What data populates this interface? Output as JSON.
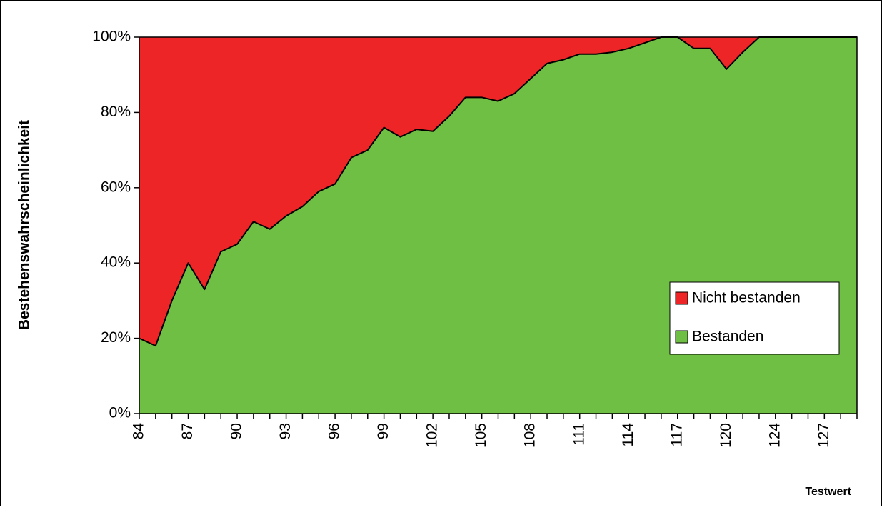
{
  "chart_data": {
    "type": "stacked-area",
    "y_label": "Bestehenswahrscheinlichkeit",
    "x_label": "Testwert",
    "categories": [
      "84",
      null,
      null,
      "87",
      null,
      null,
      "90",
      null,
      null,
      "93",
      null,
      null,
      "96",
      null,
      null,
      "99",
      null,
      null,
      "102",
      null,
      null,
      "105",
      null,
      null,
      "108",
      null,
      null,
      "111",
      null,
      null,
      "114",
      null,
      null,
      "117",
      null,
      null,
      "120",
      null,
      null,
      "124",
      null,
      null,
      "127",
      null,
      null
    ],
    "series": [
      {
        "name": "Bestanden",
        "color": "#6fbf45",
        "values": [
          20,
          18,
          30,
          40,
          33,
          43,
          45,
          51,
          49,
          52.5,
          55,
          59,
          61,
          68,
          70,
          76,
          73.5,
          75.5,
          75,
          79,
          84,
          84,
          83,
          85,
          89,
          93,
          94,
          95.5,
          95.5,
          96,
          97,
          98.5,
          100,
          100,
          97,
          97,
          91.5,
          96,
          100,
          100,
          100,
          100,
          100,
          100,
          100
        ]
      },
      {
        "name": "Nicht bestanden",
        "color": "#ee2526",
        "values": [
          80,
          82,
          70,
          60,
          67,
          57,
          55,
          49,
          51,
          47.5,
          45,
          41,
          39,
          32,
          30,
          24,
          26.5,
          24.5,
          25,
          21,
          16,
          16,
          17,
          15,
          11,
          7,
          6,
          4.5,
          4.5,
          4,
          3,
          1.5,
          0,
          0,
          3,
          3,
          8.5,
          4,
          0,
          0,
          0,
          0,
          0,
          0,
          0
        ]
      }
    ],
    "ylim": [
      0,
      100
    ],
    "yticks": [
      {
        "value": 0,
        "label": "0%"
      },
      {
        "value": 20,
        "label": "20%"
      },
      {
        "value": 40,
        "label": "40%"
      },
      {
        "value": 60,
        "label": "60%"
      },
      {
        "value": 80,
        "label": "80%"
      },
      {
        "value": 100,
        "label": "100%"
      }
    ],
    "legend": "right"
  }
}
